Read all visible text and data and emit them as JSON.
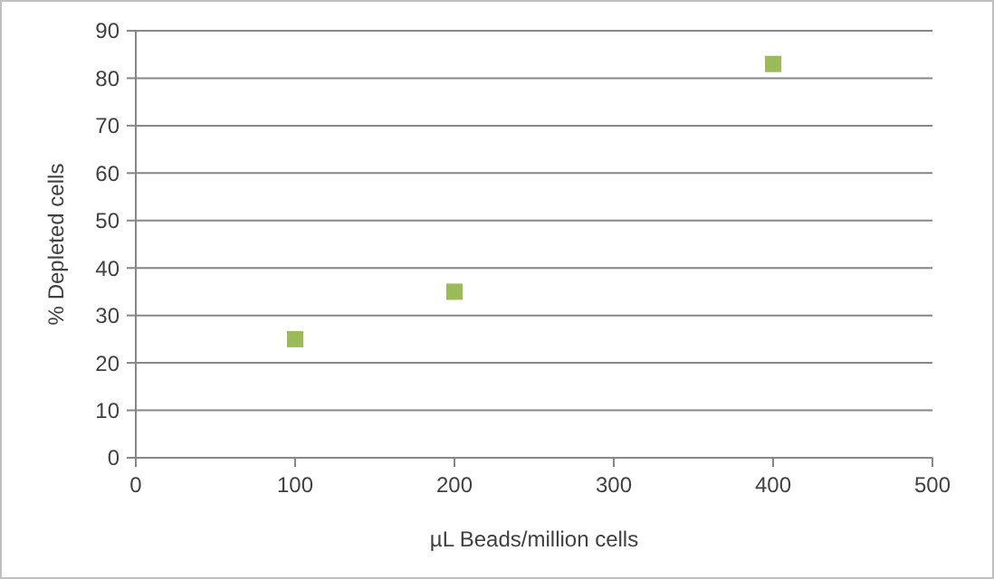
{
  "chart_data": {
    "type": "scatter",
    "xlabel": "µL Beads/million cells",
    "ylabel": "% Depleted cells",
    "x": [
      100,
      200,
      400
    ],
    "series": [
      {
        "color": "#9bbb59",
        "values": [
          25,
          35,
          83
        ]
      }
    ],
    "xlim": [
      0,
      500
    ],
    "xticks": [
      0,
      100,
      200,
      300,
      400,
      500
    ],
    "ylim": [
      0,
      90
    ],
    "yticks": [
      0,
      10,
      20,
      30,
      40,
      50,
      60,
      70,
      80,
      90
    ],
    "grid": "y",
    "marker": "square"
  }
}
